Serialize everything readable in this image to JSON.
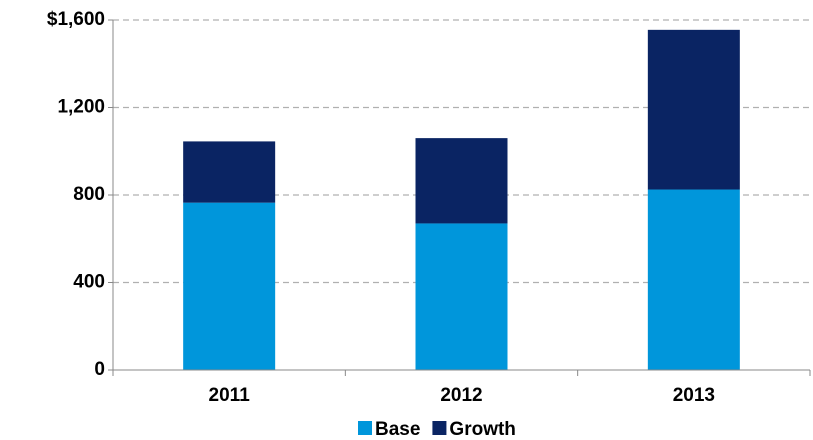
{
  "chart_data": {
    "type": "stacked_bar",
    "categories": [
      "2011",
      "2012",
      "2013"
    ],
    "series": [
      {
        "name": "Base",
        "color": "#0096db",
        "values": [
          765,
          670,
          825
        ]
      },
      {
        "name": "Growth",
        "color": "#0a2463",
        "values": [
          280,
          390,
          730
        ]
      }
    ],
    "ylim": [
      0,
      1600
    ],
    "yticks": [
      0,
      400,
      800,
      {
        "value": 1200,
        "label": "1,200"
      },
      {
        "value": 1600,
        "label": "$1,600"
      }
    ],
    "grid": true,
    "legend": "bottom"
  }
}
